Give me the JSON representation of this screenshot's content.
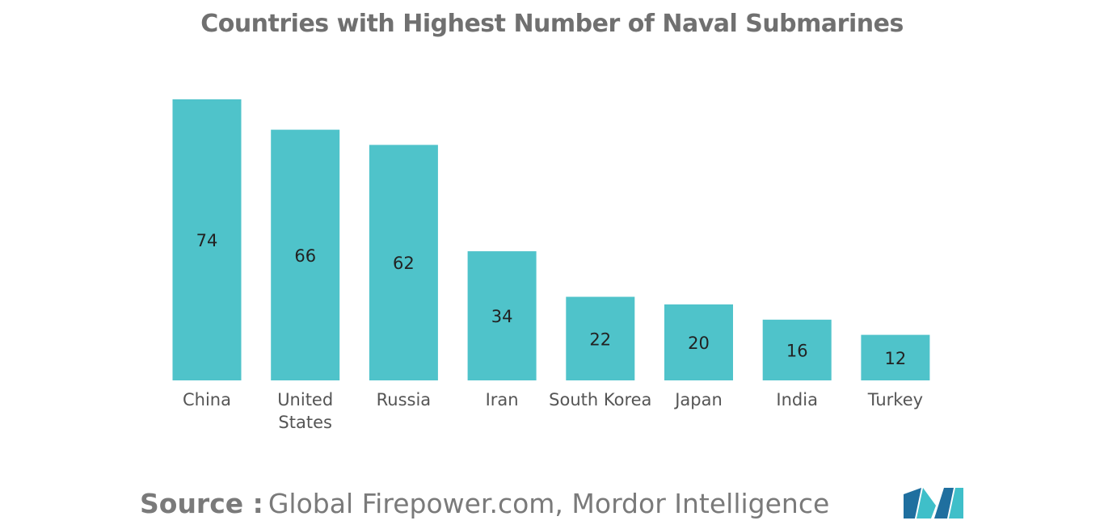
{
  "chart_data": {
    "type": "bar",
    "title": "Countries with Highest Number of Naval Submarines",
    "categories": [
      "China",
      "United States",
      "Russia",
      "Iran",
      "South Korea",
      "Japan",
      "India",
      "Turkey"
    ],
    "category_lines": [
      [
        "China"
      ],
      [
        "United",
        "States"
      ],
      [
        "Russia"
      ],
      [
        "Iran"
      ],
      [
        "South Korea"
      ],
      [
        "Japan"
      ],
      [
        "India"
      ],
      [
        "Turkey"
      ]
    ],
    "values": [
      74,
      66,
      62,
      34,
      22,
      20,
      16,
      12
    ],
    "xlabel": "",
    "ylabel": "",
    "ylim": [
      0,
      74
    ],
    "grid": false,
    "legend": "none",
    "bar_color": "#4fc3ca"
  },
  "source": {
    "label": "Source :",
    "text": "Global Firepower.com, Mordor Intelligence"
  },
  "logo": {
    "colors": [
      "#1f6f9f",
      "#3fbfc9"
    ]
  }
}
